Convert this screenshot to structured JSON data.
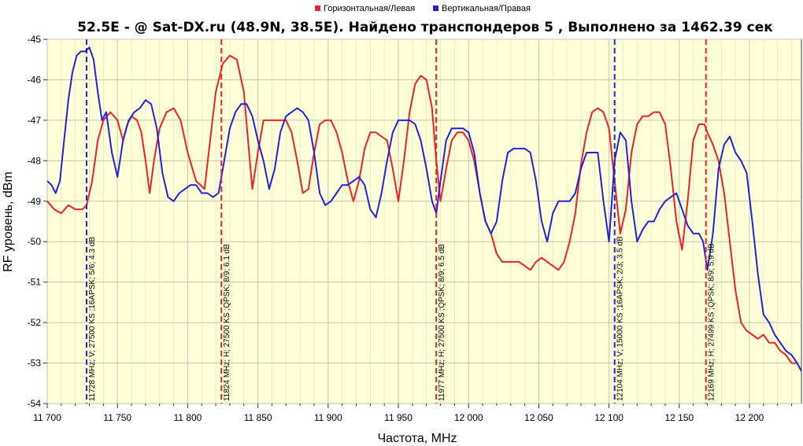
{
  "chart_data": {
    "type": "line",
    "title": "52.5E -  @ Sat-DX.ru (48.9N, 38.5E). Найдено транспондеров 5 , Выполнено за 1462.39 сек",
    "xlabel": "Частота, MHz",
    "ylabel": "RF уровень, dBm",
    "xlim": [
      11700,
      12237
    ],
    "ylim": [
      -54,
      -45
    ],
    "x_ticks": [
      11700,
      11750,
      11800,
      11850,
      11900,
      11950,
      12000,
      12050,
      12100,
      12150,
      12200
    ],
    "x_tick_labels": [
      "11 700",
      "11 750",
      "11 800",
      "11 850",
      "11 900",
      "11 950",
      "12 000",
      "12 050",
      "12 100",
      "12 150",
      "12 200"
    ],
    "y_ticks": [
      -45,
      -46,
      -47,
      -48,
      -49,
      -50,
      -51,
      -52,
      -53,
      -54
    ],
    "y_tick_labels": [
      "-45",
      "-46",
      "-47",
      "-48",
      "-49",
      "-50",
      "-51",
      "-52",
      "-53",
      "-54"
    ],
    "grid": true,
    "legend_position": "top-center",
    "background_color": "#ffffd8",
    "series": [
      {
        "name": "Горизонтальная/Левая",
        "color": "#ee2222",
        "x": [
          11700,
          11705,
          11710,
          11715,
          11720,
          11725,
          11728,
          11732,
          11736,
          11740,
          11745,
          11750,
          11754,
          11757,
          11760,
          11764,
          11767,
          11770,
          11773,
          11776,
          11780,
          11785,
          11790,
          11795,
          11800,
          11806,
          11812,
          11816,
          11820,
          11825,
          11830,
          11835,
          11840,
          11843,
          11846,
          11850,
          11854,
          11858,
          11862,
          11866,
          11870,
          11874,
          11878,
          11882,
          11886,
          11890,
          11894,
          11898,
          11902,
          11906,
          11910,
          11914,
          11918,
          11922,
          11926,
          11930,
          11934,
          11938,
          11942,
          11946,
          11950,
          11954,
          11958,
          11962,
          11966,
          11970,
          11974,
          11977,
          11980,
          11984,
          11988,
          11992,
          11996,
          12000,
          12004,
          12008,
          12012,
          12016,
          12020,
          12024,
          12028,
          12032,
          12036,
          12040,
          12044,
          12048,
          12052,
          12056,
          12060,
          12064,
          12068,
          12072,
          12076,
          12080,
          12084,
          12088,
          12092,
          12096,
          12100,
          12104,
          12108,
          12112,
          12116,
          12120,
          12124,
          12128,
          12132,
          12136,
          12140,
          12144,
          12148,
          12152,
          12156,
          12160,
          12164,
          12168,
          12170,
          12174,
          12178,
          12182,
          12186,
          12190,
          12194,
          12198,
          12202,
          12206,
          12210,
          12214,
          12218,
          12222,
          12226,
          12230,
          12234,
          12237
        ],
        "y": [
          -49,
          -49.2,
          -49.3,
          -49.1,
          -49.2,
          -49.2,
          -49.1,
          -48.5,
          -47.5,
          -47.0,
          -46.8,
          -47.0,
          -47.5,
          -47.1,
          -46.9,
          -47.0,
          -47.3,
          -48.0,
          -48.8,
          -48.0,
          -47.2,
          -46.8,
          -46.7,
          -47.0,
          -47.8,
          -48.5,
          -48.7,
          -47.5,
          -46.3,
          -45.6,
          -45.4,
          -45.5,
          -46.3,
          -47.5,
          -48.7,
          -47.8,
          -47.0,
          -47.0,
          -47.0,
          -47.0,
          -47.0,
          -47.3,
          -48.0,
          -48.8,
          -48.7,
          -47.8,
          -47.1,
          -47.0,
          -47.0,
          -47.3,
          -47.8,
          -48.5,
          -49.0,
          -48.5,
          -47.7,
          -47.3,
          -47.3,
          -47.4,
          -47.5,
          -48.2,
          -49.0,
          -48.0,
          -46.8,
          -46.1,
          -45.9,
          -46.0,
          -46.7,
          -48.0,
          -49.0,
          -48.2,
          -47.5,
          -47.3,
          -47.3,
          -47.5,
          -48.0,
          -48.8,
          -49.5,
          -49.8,
          -50.3,
          -50.5,
          -50.5,
          -50.5,
          -50.5,
          -50.6,
          -50.7,
          -50.5,
          -50.4,
          -50.5,
          -50.6,
          -50.7,
          -50.5,
          -50.0,
          -49.3,
          -48.1,
          -47.3,
          -46.8,
          -46.7,
          -46.8,
          -47.2,
          -48.5,
          -49.8,
          -49.2,
          -47.8,
          -47.1,
          -46.9,
          -46.9,
          -46.8,
          -46.8,
          -47.1,
          -48.2,
          -49.5,
          -50.2,
          -49.0,
          -47.5,
          -47.1,
          -47.1,
          -47.3,
          -47.6,
          -48.0,
          -48.8,
          -50.0,
          -51.2,
          -52.0,
          -52.2,
          -52.3,
          -52.4,
          -52.3,
          -52.5,
          -52.5,
          -52.7,
          -52.8,
          -53.0,
          -53.0,
          -53.2
        ]
      },
      {
        "name": "Вертикальная/Правая",
        "color": "#2222dd",
        "x": [
          11700,
          11703,
          11706,
          11709,
          11712,
          11715,
          11718,
          11721,
          11724,
          11727,
          11730,
          11733,
          11736,
          11739,
          11742,
          11746,
          11750,
          11754,
          11758,
          11762,
          11766,
          11770,
          11774,
          11778,
          11782,
          11786,
          11790,
          11794,
          11798,
          11802,
          11806,
          11810,
          11814,
          11818,
          11822,
          11826,
          11830,
          11834,
          11838,
          11842,
          11846,
          11850,
          11854,
          11858,
          11862,
          11866,
          11870,
          11874,
          11878,
          11882,
          11886,
          11890,
          11894,
          11898,
          11902,
          11906,
          11910,
          11914,
          11918,
          11922,
          11926,
          11930,
          11934,
          11938,
          11942,
          11946,
          11950,
          11954,
          11958,
          11962,
          11966,
          11970,
          11974,
          11977,
          11980,
          11984,
          11988,
          11992,
          11996,
          12000,
          12004,
          12008,
          12012,
          12016,
          12020,
          12024,
          12028,
          12032,
          12036,
          12040,
          12044,
          12048,
          12052,
          12056,
          12060,
          12064,
          12068,
          12072,
          12076,
          12080,
          12084,
          12088,
          12092,
          12096,
          12100,
          12104,
          12108,
          12112,
          12116,
          12120,
          12124,
          12128,
          12132,
          12136,
          12140,
          12144,
          12148,
          12152,
          12156,
          12160,
          12164,
          12167,
          12170,
          12174,
          12178,
          12182,
          12186,
          12190,
          12194,
          12198,
          12202,
          12206,
          12210,
          12214,
          12218,
          12222,
          12226,
          12230,
          12234,
          12237
        ],
        "y": [
          -48.5,
          -48.6,
          -48.8,
          -48.5,
          -47.5,
          -46.5,
          -45.8,
          -45.4,
          -45.3,
          -45.3,
          -45.2,
          -45.5,
          -46.3,
          -47.0,
          -46.8,
          -47.8,
          -48.4,
          -47.5,
          -47.0,
          -46.8,
          -46.7,
          -46.5,
          -46.6,
          -47.2,
          -48.3,
          -48.9,
          -49.0,
          -48.8,
          -48.7,
          -48.6,
          -48.6,
          -48.8,
          -48.8,
          -48.9,
          -48.8,
          -48.0,
          -47.2,
          -46.8,
          -46.6,
          -46.6,
          -46.9,
          -47.5,
          -48.0,
          -48.7,
          -48.2,
          -47.3,
          -46.9,
          -46.8,
          -46.7,
          -46.8,
          -47.0,
          -47.8,
          -48.8,
          -49.1,
          -49.0,
          -48.8,
          -48.6,
          -48.6,
          -48.5,
          -48.4,
          -48.6,
          -49.2,
          -49.4,
          -48.8,
          -48.0,
          -47.3,
          -47.0,
          -47.0,
          -47.0,
          -47.1,
          -47.5,
          -48.2,
          -49.0,
          -49.3,
          -48.5,
          -47.5,
          -47.2,
          -47.2,
          -47.2,
          -47.3,
          -47.8,
          -48.8,
          -49.5,
          -49.8,
          -49.5,
          -48.5,
          -47.8,
          -47.7,
          -47.7,
          -47.7,
          -47.8,
          -48.5,
          -49.5,
          -50.0,
          -49.3,
          -49.0,
          -49.0,
          -49.0,
          -48.8,
          -48.2,
          -47.8,
          -47.8,
          -47.8,
          -49.0,
          -50.0,
          -48.0,
          -47.3,
          -47.5,
          -49.0,
          -50.0,
          -49.7,
          -49.5,
          -49.5,
          -49.2,
          -49.0,
          -48.9,
          -48.8,
          -49.2,
          -49.6,
          -49.8,
          -49.8,
          -50.0,
          -50.7,
          -49.8,
          -48.2,
          -47.6,
          -47.4,
          -47.8,
          -48.0,
          -48.3,
          -49.5,
          -50.8,
          -51.8,
          -52.0,
          -52.3,
          -52.5,
          -52.7,
          -52.8,
          -53.0,
          -53.2
        ]
      }
    ],
    "markers": [
      {
        "x": 11728,
        "color": "#2222dd",
        "label": "11728 MHz; V; 27500 KS ;16APSK; 5/6; 4.3 dB"
      },
      {
        "x": 11824,
        "color": "#ee2222",
        "label": "11824 MHz; H; 27500 KS ;QPSK; 8/9; 6.1 dB"
      },
      {
        "x": 11977,
        "color": "#ee2222",
        "label": "11977 MHz; H; 27500 KS ;QPSK; 8/9; 6.5 dB"
      },
      {
        "x": 12104,
        "color": "#2222dd",
        "label": "12104 MHz; V; 15000 KS ;16APSK; 2/3; 3.5 dB"
      },
      {
        "x": 12169,
        "color": "#ee2222",
        "label": "12169 MHz; H; 27499 KS ;QPSK; 8/9; 5.9 dB"
      }
    ]
  }
}
